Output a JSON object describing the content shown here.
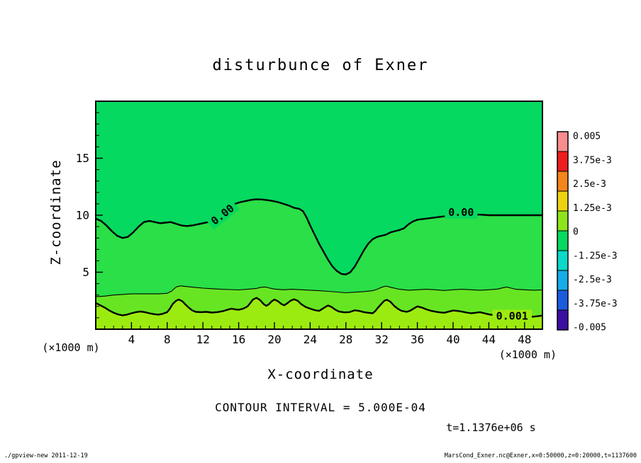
{
  "title": "disturbunce of Exner",
  "axes": {
    "x": {
      "label": "X-coordinate",
      "unit": "(×1000 m)"
    },
    "z": {
      "label": "Z-coordinate",
      "unit": "(×1000 m)"
    }
  },
  "captions": {
    "contour_interval": "CONTOUR INTERVAL = 5.000E-04",
    "time_label": "t=1.1376e+06 s",
    "footer_left": "./gpview-new  2011-12-19",
    "footer_right": "MarsCond_Exner.nc@Exner,x=0:50000,z=0:20000,t=1137600"
  },
  "chart_data": {
    "type": "contour",
    "title": "disturbunce of Exner",
    "xlabel": "X-coordinate (×1000 m)",
    "ylabel": "Z-coordinate (×1000 m)",
    "xlim": [
      0,
      50
    ],
    "ylim": [
      0,
      20
    ],
    "x_ticks": [
      4,
      8,
      12,
      16,
      20,
      24,
      28,
      32,
      36,
      40,
      44,
      48
    ],
    "z_ticks": [
      5,
      10,
      15
    ],
    "contour_interval": 0.0005,
    "time_seconds": 1137600,
    "colorbar": {
      "vmin": -0.005,
      "vmax": 0.005,
      "tick_labels": [
        "0.005",
        "3.75e-3",
        "2.5e-3",
        "1.25e-3",
        "0",
        "-1.25e-3",
        "-2.5e-3",
        "-3.75e-3",
        "-0.005"
      ],
      "palette": [
        "#F98C8C",
        "#EE1E1E",
        "#F5851A",
        "#EDD211",
        "#8DE41B",
        "#06D95F",
        "#0AD8C8",
        "#16ACE8",
        "#1B5CDE",
        "#3B0FA0"
      ]
    },
    "region_colors": {
      "upper": "#06D95F"
    },
    "bands": [
      {
        "contour_index": 0,
        "color": "#2ADF47"
      },
      {
        "contour_index": 1,
        "color": "#67E523"
      },
      {
        "contour_index": 2,
        "color": "#9CEB10"
      }
    ],
    "contours": [
      {
        "level": 0.0,
        "thick": true,
        "points": [
          [
            0,
            9.7
          ],
          [
            0.6,
            9.5
          ],
          [
            1.2,
            9.1
          ],
          [
            1.8,
            8.6
          ],
          [
            2.4,
            8.2
          ],
          [
            3,
            8.0
          ],
          [
            3.6,
            8.1
          ],
          [
            4.2,
            8.5
          ],
          [
            4.8,
            9.0
          ],
          [
            5.4,
            9.4
          ],
          [
            6,
            9.5
          ],
          [
            6.6,
            9.4
          ],
          [
            7.2,
            9.3
          ],
          [
            7.8,
            9.35
          ],
          [
            8.4,
            9.4
          ],
          [
            9,
            9.25
          ],
          [
            9.6,
            9.1
          ],
          [
            10.2,
            9.05
          ],
          [
            10.8,
            9.1
          ],
          [
            11.4,
            9.2
          ],
          [
            12,
            9.3
          ],
          [
            12.6,
            9.4
          ],
          [
            13.2,
            9.6
          ],
          [
            13.8,
            9.9
          ],
          [
            14.4,
            10.4
          ],
          [
            15,
            10.8
          ],
          [
            15.6,
            11.0
          ],
          [
            16.2,
            11.15
          ],
          [
            16.8,
            11.25
          ],
          [
            17.4,
            11.35
          ],
          [
            18,
            11.4
          ],
          [
            18.6,
            11.38
          ],
          [
            19.2,
            11.32
          ],
          [
            19.8,
            11.25
          ],
          [
            20.4,
            11.15
          ],
          [
            21,
            11.0
          ],
          [
            21.6,
            10.85
          ],
          [
            22.2,
            10.65
          ],
          [
            22.8,
            10.55
          ],
          [
            23.2,
            10.35
          ],
          [
            23.6,
            9.8
          ],
          [
            24,
            9.1
          ],
          [
            24.5,
            8.3
          ],
          [
            25,
            7.5
          ],
          [
            25.5,
            6.8
          ],
          [
            26,
            6.1
          ],
          [
            26.5,
            5.5
          ],
          [
            27,
            5.1
          ],
          [
            27.5,
            4.85
          ],
          [
            28,
            4.8
          ],
          [
            28.5,
            5.0
          ],
          [
            29,
            5.5
          ],
          [
            29.5,
            6.2
          ],
          [
            30,
            6.9
          ],
          [
            30.5,
            7.5
          ],
          [
            31,
            7.9
          ],
          [
            31.5,
            8.1
          ],
          [
            32,
            8.2
          ],
          [
            32.5,
            8.3
          ],
          [
            33,
            8.5
          ],
          [
            33.5,
            8.6
          ],
          [
            34,
            8.7
          ],
          [
            34.5,
            8.85
          ],
          [
            35,
            9.2
          ],
          [
            35.5,
            9.45
          ],
          [
            36,
            9.6
          ],
          [
            36.5,
            9.65
          ],
          [
            37,
            9.7
          ],
          [
            38,
            9.8
          ],
          [
            39,
            9.9
          ],
          [
            40,
            9.95
          ],
          [
            41,
            10.0
          ],
          [
            42,
            10.05
          ],
          [
            43,
            10.05
          ],
          [
            44,
            10.0
          ],
          [
            45,
            10.0
          ],
          [
            46,
            10.0
          ],
          [
            47,
            10.0
          ],
          [
            48,
            10.0
          ],
          [
            49,
            10.0
          ],
          [
            50,
            10.0
          ]
        ]
      },
      {
        "level": 0.0005,
        "thick": false,
        "points": [
          [
            0,
            2.85
          ],
          [
            1,
            2.9
          ],
          [
            2,
            3.0
          ],
          [
            3,
            3.05
          ],
          [
            4,
            3.1
          ],
          [
            5,
            3.1
          ],
          [
            6,
            3.1
          ],
          [
            7,
            3.1
          ],
          [
            8,
            3.15
          ],
          [
            8.5,
            3.35
          ],
          [
            9,
            3.7
          ],
          [
            9.5,
            3.8
          ],
          [
            10,
            3.75
          ],
          [
            11,
            3.68
          ],
          [
            12,
            3.6
          ],
          [
            13,
            3.55
          ],
          [
            14,
            3.5
          ],
          [
            15,
            3.48
          ],
          [
            16,
            3.45
          ],
          [
            17,
            3.5
          ],
          [
            18,
            3.58
          ],
          [
            18.5,
            3.68
          ],
          [
            19,
            3.7
          ],
          [
            19.5,
            3.6
          ],
          [
            20,
            3.52
          ],
          [
            21,
            3.46
          ],
          [
            22,
            3.5
          ],
          [
            23,
            3.46
          ],
          [
            24,
            3.42
          ],
          [
            25,
            3.38
          ],
          [
            26,
            3.32
          ],
          [
            27,
            3.26
          ],
          [
            28,
            3.2
          ],
          [
            29,
            3.25
          ],
          [
            30,
            3.3
          ],
          [
            31,
            3.38
          ],
          [
            31.5,
            3.5
          ],
          [
            32,
            3.68
          ],
          [
            32.5,
            3.78
          ],
          [
            33,
            3.68
          ],
          [
            34,
            3.5
          ],
          [
            35,
            3.42
          ],
          [
            36,
            3.46
          ],
          [
            37,
            3.5
          ],
          [
            38,
            3.46
          ],
          [
            39,
            3.4
          ],
          [
            40,
            3.46
          ],
          [
            41,
            3.5
          ],
          [
            42,
            3.46
          ],
          [
            43,
            3.42
          ],
          [
            44,
            3.46
          ],
          [
            45,
            3.52
          ],
          [
            45.5,
            3.62
          ],
          [
            46,
            3.7
          ],
          [
            46.5,
            3.6
          ],
          [
            47,
            3.5
          ],
          [
            48,
            3.46
          ],
          [
            49,
            3.42
          ],
          [
            50,
            3.45
          ]
        ]
      },
      {
        "level": 0.001,
        "thick": true,
        "points": [
          [
            0,
            2.3
          ],
          [
            0.5,
            2.1
          ],
          [
            1,
            1.9
          ],
          [
            1.5,
            1.65
          ],
          [
            2,
            1.45
          ],
          [
            2.5,
            1.3
          ],
          [
            3,
            1.22
          ],
          [
            3.5,
            1.28
          ],
          [
            4,
            1.4
          ],
          [
            4.5,
            1.5
          ],
          [
            5,
            1.55
          ],
          [
            5.5,
            1.5
          ],
          [
            6,
            1.4
          ],
          [
            6.5,
            1.32
          ],
          [
            7,
            1.28
          ],
          [
            7.5,
            1.35
          ],
          [
            8,
            1.5
          ],
          [
            8.3,
            1.8
          ],
          [
            8.6,
            2.2
          ],
          [
            9,
            2.5
          ],
          [
            9.3,
            2.6
          ],
          [
            9.7,
            2.45
          ],
          [
            10,
            2.2
          ],
          [
            10.4,
            1.9
          ],
          [
            10.8,
            1.65
          ],
          [
            11.2,
            1.52
          ],
          [
            11.8,
            1.5
          ],
          [
            12.4,
            1.52
          ],
          [
            13,
            1.46
          ],
          [
            13.6,
            1.5
          ],
          [
            14.2,
            1.58
          ],
          [
            14.8,
            1.72
          ],
          [
            15.2,
            1.8
          ],
          [
            15.6,
            1.74
          ],
          [
            16,
            1.7
          ],
          [
            16.5,
            1.8
          ],
          [
            17,
            2.0
          ],
          [
            17.3,
            2.3
          ],
          [
            17.6,
            2.6
          ],
          [
            18,
            2.75
          ],
          [
            18.4,
            2.55
          ],
          [
            18.8,
            2.2
          ],
          [
            19.1,
            2.05
          ],
          [
            19.4,
            2.2
          ],
          [
            19.7,
            2.45
          ],
          [
            20,
            2.6
          ],
          [
            20.4,
            2.45
          ],
          [
            20.8,
            2.2
          ],
          [
            21.1,
            2.1
          ],
          [
            21.4,
            2.25
          ],
          [
            21.8,
            2.5
          ],
          [
            22.2,
            2.62
          ],
          [
            22.6,
            2.5
          ],
          [
            23,
            2.2
          ],
          [
            23.5,
            1.95
          ],
          [
            24,
            1.8
          ],
          [
            24.5,
            1.68
          ],
          [
            25,
            1.6
          ],
          [
            25.3,
            1.75
          ],
          [
            25.7,
            1.95
          ],
          [
            26,
            2.08
          ],
          [
            26.4,
            1.95
          ],
          [
            26.8,
            1.72
          ],
          [
            27.2,
            1.56
          ],
          [
            27.8,
            1.48
          ],
          [
            28.4,
            1.5
          ],
          [
            29,
            1.66
          ],
          [
            29.5,
            1.6
          ],
          [
            30,
            1.5
          ],
          [
            30.5,
            1.44
          ],
          [
            31,
            1.4
          ],
          [
            31.3,
            1.6
          ],
          [
            31.6,
            1.9
          ],
          [
            32,
            2.25
          ],
          [
            32.3,
            2.5
          ],
          [
            32.6,
            2.58
          ],
          [
            33,
            2.4
          ],
          [
            33.4,
            2.05
          ],
          [
            33.8,
            1.8
          ],
          [
            34.2,
            1.62
          ],
          [
            34.8,
            1.52
          ],
          [
            35.2,
            1.62
          ],
          [
            35.6,
            1.82
          ],
          [
            36,
            2.0
          ],
          [
            36.5,
            1.9
          ],
          [
            37,
            1.74
          ],
          [
            37.5,
            1.62
          ],
          [
            38,
            1.54
          ],
          [
            38.5,
            1.48
          ],
          [
            39,
            1.44
          ],
          [
            39.5,
            1.54
          ],
          [
            40,
            1.64
          ],
          [
            40.5,
            1.6
          ],
          [
            41,
            1.54
          ],
          [
            41.5,
            1.46
          ],
          [
            42,
            1.4
          ],
          [
            42.5,
            1.44
          ],
          [
            43,
            1.5
          ],
          [
            43.5,
            1.4
          ],
          [
            44,
            1.3
          ],
          [
            44.5,
            1.24
          ],
          [
            45,
            1.2
          ],
          [
            45.5,
            1.26
          ],
          [
            46,
            1.34
          ],
          [
            46.5,
            1.3
          ],
          [
            47,
            1.24
          ],
          [
            47.5,
            1.2
          ],
          [
            48,
            1.14
          ],
          [
            48.5,
            1.1
          ],
          [
            49,
            1.1
          ],
          [
            49.5,
            1.14
          ],
          [
            50,
            1.2
          ]
        ]
      }
    ],
    "contour_labels": [
      {
        "text": "0.00",
        "x": 14.2,
        "z": 10.05,
        "rot": -38,
        "bg": "#06D95F"
      },
      {
        "text": "0.00",
        "x": 40.9,
        "z": 10.25,
        "rot": 0,
        "bg": "#06D95F"
      },
      {
        "text": "0.001",
        "x": 46.6,
        "z": 1.15,
        "rot": 0,
        "bg": "#9CEB10"
      }
    ]
  }
}
